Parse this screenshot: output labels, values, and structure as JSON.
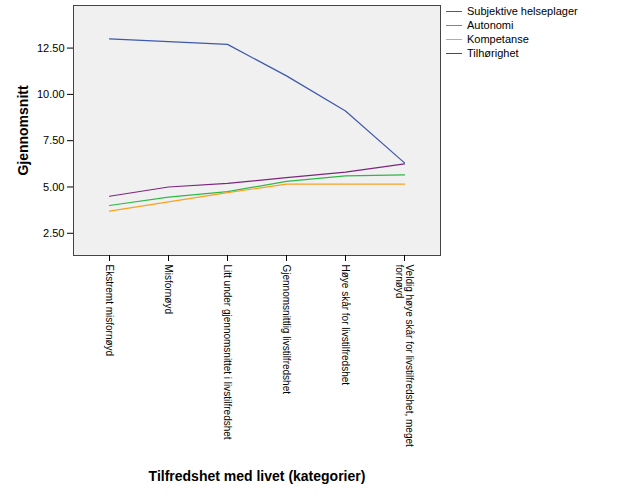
{
  "chart_data": {
    "type": "line",
    "x_label": "Tilfredshet med livet (kategorier)",
    "y_label": "Gjennomsnitt",
    "categories": [
      "Ekstremt misfornøyd",
      "Misfornøyd",
      "Litt under gjennomsnittet i livstilfredshet",
      "Gjennomsnittlig livstilfredshet",
      "Høye skår for livstilfredshet",
      "Veldig høye skår for livstilfredshet, meget fornøyd"
    ],
    "series": [
      {
        "name": "Subjektive helseplager",
        "color": "#3e58ac",
        "values": [
          13.0,
          12.85,
          12.7,
          11.0,
          9.1,
          6.3
        ]
      },
      {
        "name": "Autonomi",
        "color": "#2eb848",
        "values": [
          4.0,
          4.45,
          4.75,
          5.3,
          5.6,
          5.65
        ]
      },
      {
        "name": "Kompetanse",
        "color": "#f9a21f",
        "values": [
          3.7,
          4.2,
          4.7,
          5.15,
          5.15,
          5.15
        ]
      },
      {
        "name": "Tilhørighet",
        "color": "#7b277d",
        "values": [
          4.5,
          5.0,
          5.2,
          5.5,
          5.8,
          6.25
        ]
      }
    ],
    "ylim": [
      1.3,
      14.8
    ],
    "yticks": [
      {
        "value": 2.5,
        "label": "2.50"
      },
      {
        "value": 5,
        "label": "5.00"
      },
      {
        "value": 7.5,
        "label": "7.50"
      },
      {
        "value": 10,
        "label": "10.00"
      },
      {
        "value": 12.5,
        "label": "12.50"
      }
    ],
    "grid": false,
    "legend": "top-right"
  }
}
